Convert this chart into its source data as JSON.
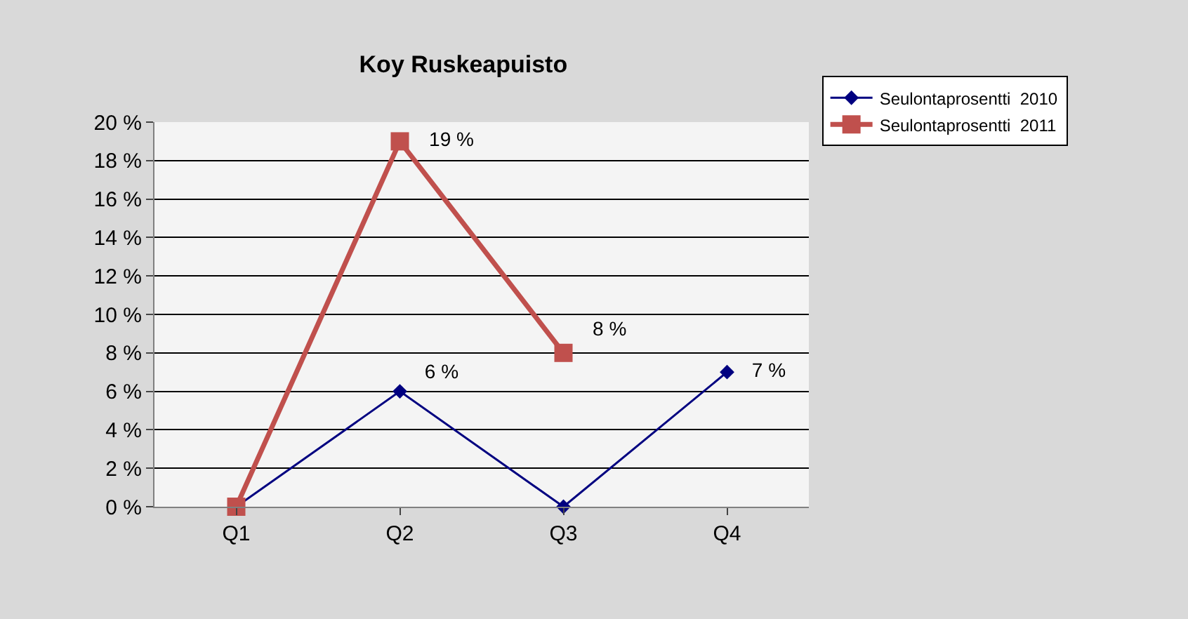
{
  "chart_data": {
    "type": "line",
    "title": "Koy Ruskeapuisto",
    "categories": [
      "Q1",
      "Q2",
      "Q3",
      "Q4"
    ],
    "series": [
      {
        "name": "Seulontaprosentti  2010",
        "color": "#000080",
        "values": [
          0,
          6,
          0,
          7
        ],
        "value_labels": [
          null,
          "6 %",
          null,
          "7 %"
        ],
        "marker": "diamond"
      },
      {
        "name": "Seulontaprosentti  2011",
        "color": "#c0504d",
        "values": [
          0,
          19,
          8,
          null
        ],
        "value_labels": [
          null,
          "19 %",
          "8 %",
          null
        ],
        "marker": "square"
      }
    ],
    "ylim": [
      0,
      20
    ],
    "yticks": [
      {
        "value": 0,
        "label": "0 %"
      },
      {
        "value": 2,
        "label": "2 %"
      },
      {
        "value": 4,
        "label": "4 %"
      },
      {
        "value": 6,
        "label": "6 %"
      },
      {
        "value": 8,
        "label": "8 %"
      },
      {
        "value": 10,
        "label": "10 %"
      },
      {
        "value": 12,
        "label": "12 %"
      },
      {
        "value": 14,
        "label": "14 %"
      },
      {
        "value": 16,
        "label": "16 %"
      },
      {
        "value": 18,
        "label": "18 %"
      },
      {
        "value": 20,
        "label": "20 %"
      }
    ],
    "grid": "y",
    "legend": "top right"
  }
}
